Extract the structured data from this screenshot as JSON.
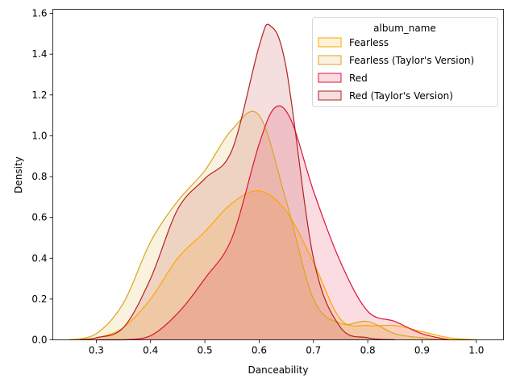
{
  "chart_data": {
    "type": "area",
    "title": "",
    "xlabel": "Danceability",
    "ylabel": "Density",
    "xlim": [
      0.22,
      1.05
    ],
    "ylim": [
      0,
      1.62
    ],
    "xticks": [
      0.3,
      0.4,
      0.5,
      0.6,
      0.7,
      0.8,
      0.9,
      1.0
    ],
    "xtick_labels": [
      "0.3",
      "0.4",
      "0.5",
      "0.6",
      "0.7",
      "0.8",
      "0.9",
      "1.0"
    ],
    "yticks": [
      0.0,
      0.2,
      0.4,
      0.6,
      0.8,
      1.0,
      1.2,
      1.4,
      1.6
    ],
    "ytick_labels": [
      "0.0",
      "0.2",
      "0.4",
      "0.6",
      "0.8",
      "1.0",
      "1.2",
      "1.4",
      "1.6"
    ],
    "grid": false,
    "legend": {
      "title": "album_name",
      "placement": "top-right"
    },
    "series": [
      {
        "name": "Fearless",
        "color": "#FFA500",
        "x": [
          0.25,
          0.3,
          0.35,
          0.4,
          0.45,
          0.5,
          0.55,
          0.6,
          0.65,
          0.7,
          0.75,
          0.8,
          0.85,
          0.9,
          0.95,
          1.0
        ],
        "y": [
          0.0,
          0.01,
          0.06,
          0.2,
          0.4,
          0.53,
          0.67,
          0.73,
          0.63,
          0.38,
          0.1,
          0.07,
          0.07,
          0.04,
          0.01,
          0.0
        ]
      },
      {
        "name": "Fearless (Taylor's Version)",
        "color": "#DAA520",
        "x": [
          0.25,
          0.3,
          0.35,
          0.4,
          0.45,
          0.5,
          0.55,
          0.6,
          0.65,
          0.7,
          0.75,
          0.8,
          0.85,
          0.9,
          0.95,
          1.0
        ],
        "y": [
          0.0,
          0.03,
          0.18,
          0.48,
          0.68,
          0.83,
          1.03,
          1.1,
          0.68,
          0.2,
          0.08,
          0.09,
          0.03,
          0.01,
          0.0,
          0.0
        ]
      },
      {
        "name": "Red",
        "color": "#DC143C",
        "x": [
          0.3,
          0.35,
          0.4,
          0.45,
          0.5,
          0.55,
          0.6,
          0.63,
          0.66,
          0.7,
          0.75,
          0.8,
          0.85,
          0.9,
          0.95
        ],
        "y": [
          0.0,
          0.0,
          0.02,
          0.13,
          0.3,
          0.5,
          0.96,
          1.14,
          1.07,
          0.73,
          0.38,
          0.14,
          0.09,
          0.03,
          0.0
        ]
      },
      {
        "name": "Red (Taylor's Version)",
        "color": "#B22222",
        "x": [
          0.27,
          0.3,
          0.35,
          0.4,
          0.45,
          0.5,
          0.55,
          0.6,
          0.62,
          0.65,
          0.7,
          0.75,
          0.8,
          0.85
        ],
        "y": [
          0.0,
          0.01,
          0.06,
          0.3,
          0.64,
          0.79,
          0.93,
          1.44,
          1.54,
          1.33,
          0.4,
          0.06,
          0.01,
          0.0
        ]
      }
    ]
  }
}
